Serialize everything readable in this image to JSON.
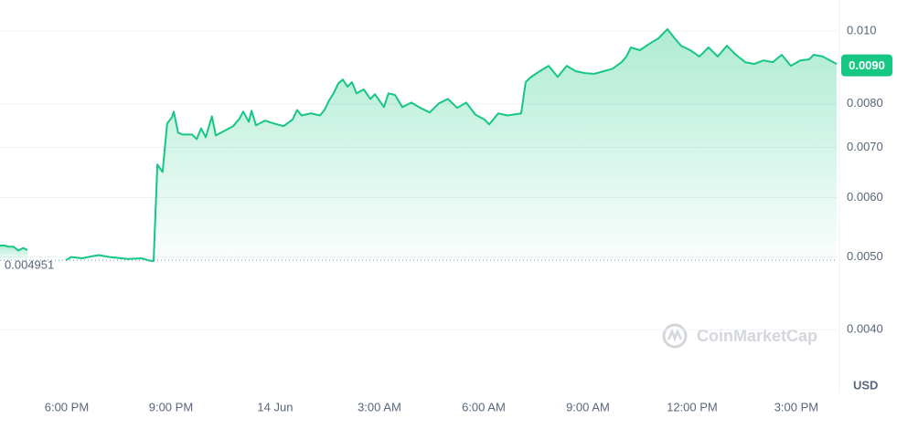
{
  "chart_data": {
    "type": "line",
    "log_y": true,
    "color": "#16c784",
    "grid": true,
    "x": [
      16.08,
      16.21,
      16.34,
      16.47,
      16.61,
      16.74,
      16.87,
      17.4,
      17.97,
      18.13,
      18.45,
      18.71,
      18.92,
      19.24,
      19.76,
      20.16,
      20.42,
      20.5,
      20.61,
      20.76,
      20.89,
      21.03,
      21.08,
      21.21,
      21.34,
      21.61,
      21.74,
      21.87,
      22.0,
      22.18,
      22.29,
      22.53,
      22.79,
      22.97,
      23.08,
      23.24,
      23.32,
      23.45,
      23.71,
      23.97,
      24.24,
      24.5,
      24.63,
      24.76,
      25.03,
      25.29,
      25.42,
      25.55,
      25.68,
      25.82,
      25.95,
      26.08,
      26.21,
      26.34,
      26.55,
      26.74,
      26.87,
      27.0,
      27.13,
      27.26,
      27.45,
      27.66,
      27.92,
      28.18,
      28.45,
      28.71,
      28.97,
      29.24,
      29.5,
      29.76,
      30.03,
      30.16,
      30.29,
      30.42,
      30.68,
      31.08,
      31.21,
      31.34,
      31.61,
      31.87,
      32.13,
      32.39,
      32.66,
      32.92,
      33.18,
      33.45,
      33.71,
      33.97,
      34.11,
      34.24,
      34.5,
      34.76,
      35.03,
      35.29,
      35.5,
      35.68,
      35.95,
      36.21,
      36.47,
      36.74,
      37.0,
      37.26,
      37.53,
      37.79,
      38.05,
      38.32,
      38.58,
      38.84,
      39.11,
      39.37,
      39.5,
      39.76,
      40.16
    ],
    "values": [
      0.00518,
      0.00518,
      0.00516,
      0.00516,
      0.0051,
      0.00514,
      0.00511,
      null,
      0.00495,
      0.005,
      0.00498,
      0.00501,
      0.00503,
      0.005,
      0.00497,
      0.00498,
      0.00494,
      0.00494,
      0.00664,
      0.00649,
      0.00753,
      0.00768,
      0.00781,
      0.00732,
      0.00728,
      0.00728,
      0.00718,
      0.00742,
      0.00722,
      0.0077,
      0.00726,
      0.00736,
      0.00747,
      0.00764,
      0.00781,
      0.00757,
      0.00783,
      0.00749,
      0.0076,
      0.00753,
      0.00747,
      0.00762,
      0.00785,
      0.00772,
      0.00777,
      0.00772,
      0.00785,
      0.00808,
      0.00826,
      0.00852,
      0.00862,
      0.00843,
      0.00855,
      0.00826,
      0.00836,
      0.00812,
      0.00824,
      0.00808,
      0.00792,
      0.00826,
      0.00822,
      0.00792,
      0.00803,
      0.0079,
      0.00779,
      0.00801,
      0.00812,
      0.0079,
      0.00803,
      0.00774,
      0.00762,
      0.00751,
      0.00764,
      0.00777,
      0.00772,
      0.00777,
      0.00855,
      0.00867,
      0.00884,
      0.00899,
      0.00869,
      0.00899,
      0.00884,
      0.00879,
      0.00877,
      0.00884,
      0.00891,
      0.00909,
      0.00925,
      0.00951,
      0.00943,
      0.00961,
      0.00978,
      0.01006,
      0.00978,
      0.00956,
      0.00943,
      0.00925,
      0.00951,
      0.00925,
      0.00956,
      0.0093,
      0.00909,
      0.00904,
      0.00914,
      0.00909,
      0.0093,
      0.00899,
      0.00914,
      0.00917,
      0.0093,
      0.00925,
      0.00904
    ],
    "xlim": [
      16.08,
      40.16
    ],
    "xticks": [
      {
        "value": 18,
        "label": "6:00 PM"
      },
      {
        "value": 21,
        "label": "9:00 PM"
      },
      {
        "value": 24,
        "label": "14 Jun"
      },
      {
        "value": 27,
        "label": "3:00 AM"
      },
      {
        "value": 30,
        "label": "6:00 AM"
      },
      {
        "value": 33,
        "label": "9:00 AM"
      },
      {
        "value": 36,
        "label": "12:00 PM"
      },
      {
        "value": 39,
        "label": "3:00 PM"
      }
    ],
    "ylim": [
      0.0033,
      0.011
    ],
    "yticks": [
      {
        "value": 0.01,
        "label": "0.010"
      },
      {
        "value": 0.008,
        "label": "0.0080"
      },
      {
        "value": 0.007,
        "label": "0.0070"
      },
      {
        "value": 0.006,
        "label": "0.0060"
      },
      {
        "value": 0.005,
        "label": "0.0050"
      },
      {
        "value": 0.004,
        "label": "0.0040"
      }
    ],
    "current_price": {
      "value": 0.009,
      "label": "0.0090",
      "color": "#16c784"
    },
    "reference_line": 0.004951,
    "y_unit": "USD",
    "watermark": "CoinMarketCap"
  }
}
